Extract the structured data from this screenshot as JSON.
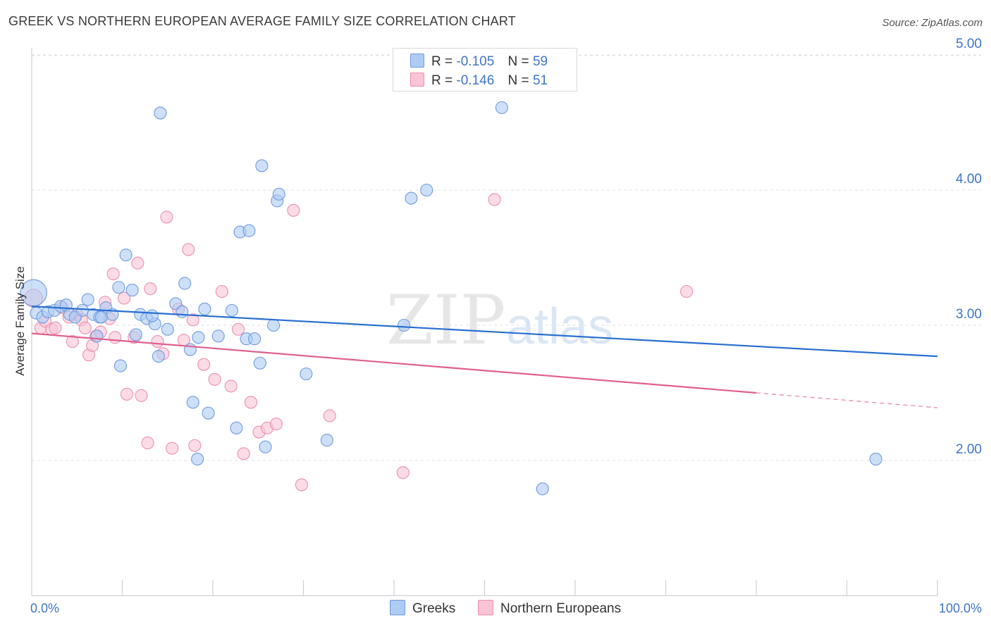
{
  "title": "GREEK VS NORTHERN EUROPEAN AVERAGE FAMILY SIZE CORRELATION CHART",
  "source": "Source: ZipAtlas.com",
  "watermark": {
    "zip": "ZIP",
    "atlas": "atlas"
  },
  "legend_top": {
    "r_label": "R =",
    "n_label": "N =",
    "rows": [
      {
        "series": "Greeks",
        "r": "-0.105",
        "n": "59"
      },
      {
        "series": "Northern Europeans",
        "r": "-0.146",
        "n": "51"
      }
    ]
  },
  "colors": {
    "greeks_fill": "#aecbf3",
    "greeks_stroke": "#6f9be0",
    "greeks_line": "#2a6fcf",
    "northern_fill": "#f8c4d6",
    "northern_stroke": "#ec8fb0",
    "northern_line": "#e0608f",
    "axis_text": "#3f74c9",
    "grid": "#e2e2e2"
  },
  "chart_data": {
    "type": "scatter",
    "title": "GREEK VS NORTHERN EUROPEAN AVERAGE FAMILY SIZE CORRELATION CHART",
    "xlabel": "",
    "ylabel": "Average Family Size",
    "xlim": [
      0,
      100
    ],
    "ylim": [
      1.0,
      5.1
    ],
    "x_tick_labels": [
      {
        "value": 0,
        "label": "0.0%"
      },
      {
        "value": 100,
        "label": "100.0%"
      }
    ],
    "y_ticks": [
      {
        "value": 2.0,
        "label": "2.00"
      },
      {
        "value": 3.0,
        "label": "3.00"
      },
      {
        "value": 4.0,
        "label": "4.00"
      },
      {
        "value": 5.0,
        "label": "5.00"
      }
    ],
    "legend": [
      "Greeks",
      "Northern Europeans"
    ],
    "series": [
      {
        "name": "Greeks",
        "trend": {
          "x": [
            0,
            100
          ],
          "y": [
            3.14,
            2.77
          ],
          "solid_to": 100
        },
        "points": [
          {
            "x": 0.2,
            "y": 3.24,
            "s": 2.2
          },
          {
            "x": 0.5,
            "y": 3.09
          },
          {
            "x": 1.2,
            "y": 3.06
          },
          {
            "x": 1.8,
            "y": 3.1
          },
          {
            "x": 2.5,
            "y": 3.11
          },
          {
            "x": 3.2,
            "y": 3.14
          },
          {
            "x": 3.8,
            "y": 3.15
          },
          {
            "x": 4.2,
            "y": 3.08
          },
          {
            "x": 4.8,
            "y": 3.06
          },
          {
            "x": 5.6,
            "y": 3.11
          },
          {
            "x": 6.2,
            "y": 3.19
          },
          {
            "x": 6.8,
            "y": 3.08
          },
          {
            "x": 7.5,
            "y": 3.06
          },
          {
            "x": 7.2,
            "y": 2.92
          },
          {
            "x": 8.2,
            "y": 3.13
          },
          {
            "x": 9.6,
            "y": 3.28
          },
          {
            "x": 9.8,
            "y": 2.7
          },
          {
            "x": 8.9,
            "y": 3.08
          },
          {
            "x": 11.1,
            "y": 3.26
          },
          {
            "x": 11.5,
            "y": 2.93
          },
          {
            "x": 10.4,
            "y": 3.52
          },
          {
            "x": 12.0,
            "y": 3.08
          },
          {
            "x": 12.7,
            "y": 3.05
          },
          {
            "x": 13.6,
            "y": 3.01
          },
          {
            "x": 14.0,
            "y": 2.77
          },
          {
            "x": 15.0,
            "y": 2.97
          },
          {
            "x": 15.9,
            "y": 3.16
          },
          {
            "x": 16.6,
            "y": 3.1
          },
          {
            "x": 17.5,
            "y": 2.82
          },
          {
            "x": 14.2,
            "y": 4.57
          },
          {
            "x": 16.9,
            "y": 3.31
          },
          {
            "x": 18.4,
            "y": 2.91
          },
          {
            "x": 17.8,
            "y": 2.43
          },
          {
            "x": 19.1,
            "y": 3.12
          },
          {
            "x": 20.6,
            "y": 2.92
          },
          {
            "x": 19.5,
            "y": 2.35
          },
          {
            "x": 18.3,
            "y": 2.01
          },
          {
            "x": 22.1,
            "y": 3.11
          },
          {
            "x": 22.6,
            "y": 2.24
          },
          {
            "x": 23.0,
            "y": 3.69
          },
          {
            "x": 23.7,
            "y": 2.9
          },
          {
            "x": 24.0,
            "y": 3.7
          },
          {
            "x": 24.6,
            "y": 2.9
          },
          {
            "x": 25.2,
            "y": 2.72
          },
          {
            "x": 25.4,
            "y": 4.18
          },
          {
            "x": 25.8,
            "y": 2.1
          },
          {
            "x": 26.7,
            "y": 3.0
          },
          {
            "x": 27.1,
            "y": 3.92
          },
          {
            "x": 27.3,
            "y": 3.97
          },
          {
            "x": 30.3,
            "y": 2.64
          },
          {
            "x": 32.6,
            "y": 2.15
          },
          {
            "x": 41.1,
            "y": 3.0
          },
          {
            "x": 41.9,
            "y": 3.94
          },
          {
            "x": 43.6,
            "y": 4.0
          },
          {
            "x": 51.9,
            "y": 4.61
          },
          {
            "x": 56.4,
            "y": 1.79
          },
          {
            "x": 93.2,
            "y": 2.01
          },
          {
            "x": 7.7,
            "y": 3.06
          },
          {
            "x": 13.3,
            "y": 3.07
          }
        ]
      },
      {
        "name": "Northern Europeans",
        "trend": {
          "x": [
            0,
            100
          ],
          "y": [
            2.94,
            2.39
          ],
          "solid_to": 80
        },
        "points": [
          {
            "x": 0.2,
            "y": 3.2,
            "s": 1.5
          },
          {
            "x": 1.0,
            "y": 2.98
          },
          {
            "x": 1.5,
            "y": 3.03
          },
          {
            "x": 2.2,
            "y": 2.97
          },
          {
            "x": 2.6,
            "y": 2.98
          },
          {
            "x": 3.4,
            "y": 3.13
          },
          {
            "x": 4.1,
            "y": 3.06
          },
          {
            "x": 4.5,
            "y": 2.88
          },
          {
            "x": 5.0,
            "y": 3.08
          },
          {
            "x": 5.5,
            "y": 3.04
          },
          {
            "x": 5.9,
            "y": 2.98
          },
          {
            "x": 6.3,
            "y": 2.78
          },
          {
            "x": 6.7,
            "y": 2.85
          },
          {
            "x": 7.1,
            "y": 2.92
          },
          {
            "x": 7.6,
            "y": 2.95
          },
          {
            "x": 8.1,
            "y": 3.17
          },
          {
            "x": 8.6,
            "y": 3.05
          },
          {
            "x": 9.2,
            "y": 2.91
          },
          {
            "x": 9.0,
            "y": 3.38
          },
          {
            "x": 10.2,
            "y": 3.2
          },
          {
            "x": 10.5,
            "y": 2.49
          },
          {
            "x": 11.3,
            "y": 2.91
          },
          {
            "x": 11.7,
            "y": 3.46
          },
          {
            "x": 12.1,
            "y": 2.48
          },
          {
            "x": 12.8,
            "y": 2.13
          },
          {
            "x": 13.1,
            "y": 3.27
          },
          {
            "x": 13.9,
            "y": 2.88
          },
          {
            "x": 14.5,
            "y": 2.79
          },
          {
            "x": 14.9,
            "y": 3.8
          },
          {
            "x": 15.5,
            "y": 2.09
          },
          {
            "x": 16.2,
            "y": 3.12
          },
          {
            "x": 16.8,
            "y": 2.89
          },
          {
            "x": 17.3,
            "y": 3.56
          },
          {
            "x": 17.8,
            "y": 3.04
          },
          {
            "x": 18.0,
            "y": 2.11
          },
          {
            "x": 19.0,
            "y": 2.71
          },
          {
            "x": 20.2,
            "y": 2.6
          },
          {
            "x": 21.0,
            "y": 3.25
          },
          {
            "x": 22.0,
            "y": 2.55
          },
          {
            "x": 22.8,
            "y": 2.97
          },
          {
            "x": 23.4,
            "y": 2.05
          },
          {
            "x": 24.2,
            "y": 2.43
          },
          {
            "x": 25.1,
            "y": 2.21
          },
          {
            "x": 26.0,
            "y": 2.24
          },
          {
            "x": 27.0,
            "y": 2.27
          },
          {
            "x": 28.9,
            "y": 3.85
          },
          {
            "x": 29.8,
            "y": 1.82
          },
          {
            "x": 32.9,
            "y": 2.33
          },
          {
            "x": 41.0,
            "y": 1.91
          },
          {
            "x": 51.1,
            "y": 3.93
          },
          {
            "x": 72.3,
            "y": 3.25
          }
        ]
      }
    ]
  }
}
